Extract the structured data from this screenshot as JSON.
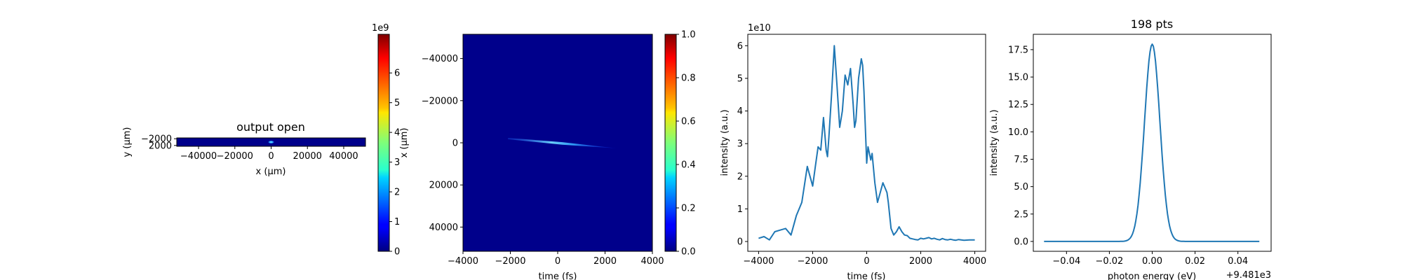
{
  "chart_data": [
    {
      "type": "heatmap",
      "title": "output open",
      "xlabel": "x (μm)",
      "ylabel": "y (μm)",
      "xlim": [
        -52000,
        52000
      ],
      "ylim": [
        2500,
        -2500
      ],
      "x_ticks": [
        "−40000",
        "−20000",
        "0",
        "20000",
        "40000"
      ],
      "x_tick_values": [
        -40000,
        -20000,
        0,
        20000,
        40000
      ],
      "y_ticks": [
        "−2000",
        "2000"
      ],
      "y_tick_values": [
        -2000,
        2000
      ],
      "colormap": "jet",
      "colorbar": {
        "range": [
          0,
          7.3
        ],
        "ticks": [
          "0",
          "1",
          "2",
          "3",
          "4",
          "5",
          "6"
        ],
        "tick_values": [
          0,
          1,
          2,
          3,
          4,
          5,
          6
        ],
        "offset_label": "1e9"
      },
      "spot": {
        "x": 0,
        "y": 0
      }
    },
    {
      "type": "heatmap",
      "title": "",
      "xlabel": "time (fs)",
      "ylabel": "x (μm)",
      "xlim": [
        -4000,
        4000
      ],
      "ylim": [
        -51500,
        51500
      ],
      "x_ticks": [
        "−4000",
        "−2000",
        "0",
        "2000",
        "4000"
      ],
      "x_tick_values": [
        -4000,
        -2000,
        0,
        2000,
        4000
      ],
      "y_ticks": [
        "−40000",
        "−20000",
        "0",
        "20000",
        "40000"
      ],
      "y_tick_values": [
        -40000,
        -20000,
        0,
        20000,
        40000
      ],
      "colormap": "jet",
      "colorbar": {
        "range": [
          0,
          1.0
        ],
        "ticks": [
          "0.0",
          "0.2",
          "0.4",
          "0.6",
          "0.8",
          "1.0"
        ],
        "tick_values": [
          0,
          0.2,
          0.4,
          0.6,
          0.8,
          1.0
        ]
      },
      "streak": {
        "x_start": -2100,
        "y_start": -2000,
        "x_end": 2500,
        "y_end": 2600
      }
    },
    {
      "type": "line",
      "title": "",
      "xlabel": "time (fs)",
      "ylabel": "intensity (a.u.)",
      "offset_label": "1e10",
      "xlim": [
        -4400,
        4400
      ],
      "ylim": [
        -0.3,
        6.35
      ],
      "x_ticks": [
        "−4000",
        "−2000",
        "0",
        "2000",
        "4000"
      ],
      "x_tick_values": [
        -4000,
        -2000,
        0,
        2000,
        4000
      ],
      "y_ticks": [
        "0",
        "1",
        "2",
        "3",
        "4",
        "5",
        "6"
      ],
      "y_tick_values": [
        0,
        1,
        2,
        3,
        4,
        5,
        6
      ],
      "color": "#1f77b4",
      "x": [
        -4000,
        -3800,
        -3600,
        -3400,
        -3200,
        -3000,
        -2800,
        -2600,
        -2500,
        -2400,
        -2200,
        -2000,
        -1900,
        -1800,
        -1700,
        -1600,
        -1500,
        -1450,
        -1400,
        -1300,
        -1200,
        -1100,
        -1000,
        -900,
        -800,
        -700,
        -600,
        -500,
        -450,
        -400,
        -300,
        -200,
        -150,
        -100,
        0,
        50,
        100,
        150,
        200,
        300,
        400,
        500,
        600,
        700,
        750,
        800,
        900,
        1000,
        1100,
        1200,
        1300,
        1400,
        1500,
        1600,
        1700,
        1800,
        1900,
        2000,
        2100,
        2200,
        2300,
        2400,
        2500,
        2600,
        2700,
        2800,
        2900,
        3000,
        3100,
        3200,
        3300,
        3400,
        3600,
        3800,
        4000
      ],
      "y": [
        0.1,
        0.15,
        0.05,
        0.3,
        0.35,
        0.4,
        0.2,
        0.8,
        1.0,
        1.2,
        2.3,
        1.7,
        2.3,
        2.9,
        2.8,
        3.8,
        2.8,
        2.6,
        3.2,
        4.5,
        6.0,
        4.8,
        3.5,
        4.0,
        5.1,
        4.8,
        5.3,
        4.2,
        3.5,
        3.7,
        5.0,
        5.6,
        5.4,
        4.6,
        2.4,
        2.9,
        2.7,
        2.5,
        2.7,
        1.8,
        1.2,
        1.5,
        1.8,
        1.6,
        1.5,
        1.2,
        0.4,
        0.2,
        0.3,
        0.45,
        0.3,
        0.2,
        0.18,
        0.1,
        0.08,
        0.06,
        0.05,
        0.1,
        0.08,
        0.1,
        0.12,
        0.08,
        0.1,
        0.07,
        0.05,
        0.09,
        0.06,
        0.05,
        0.07,
        0.05,
        0.04,
        0.06,
        0.04,
        0.05,
        0.05
      ]
    },
    {
      "type": "line",
      "title": "198 pts",
      "xlabel": "photon energy (eV)",
      "ylabel": "intensity (a.u.)",
      "offset_label": "+9.481e3",
      "xlim": [
        -0.0555,
        0.0555
      ],
      "ylim": [
        -0.9,
        18.9
      ],
      "x_ticks": [
        "−0.04",
        "−0.02",
        "0.00",
        "0.02",
        "0.04"
      ],
      "x_tick_values": [
        -0.04,
        -0.02,
        0,
        0.02,
        0.04
      ],
      "y_ticks": [
        "0.0",
        "2.5",
        "5.0",
        "7.5",
        "10.0",
        "12.5",
        "15.0",
        "17.5"
      ],
      "y_tick_values": [
        0,
        2.5,
        5,
        7.5,
        10,
        12.5,
        15,
        17.5
      ],
      "color": "#1f77b4",
      "peak": {
        "center": 0,
        "height": 18.0,
        "sigma": 0.0036
      },
      "x_range": [
        -0.0505,
        0.05
      ]
    }
  ]
}
